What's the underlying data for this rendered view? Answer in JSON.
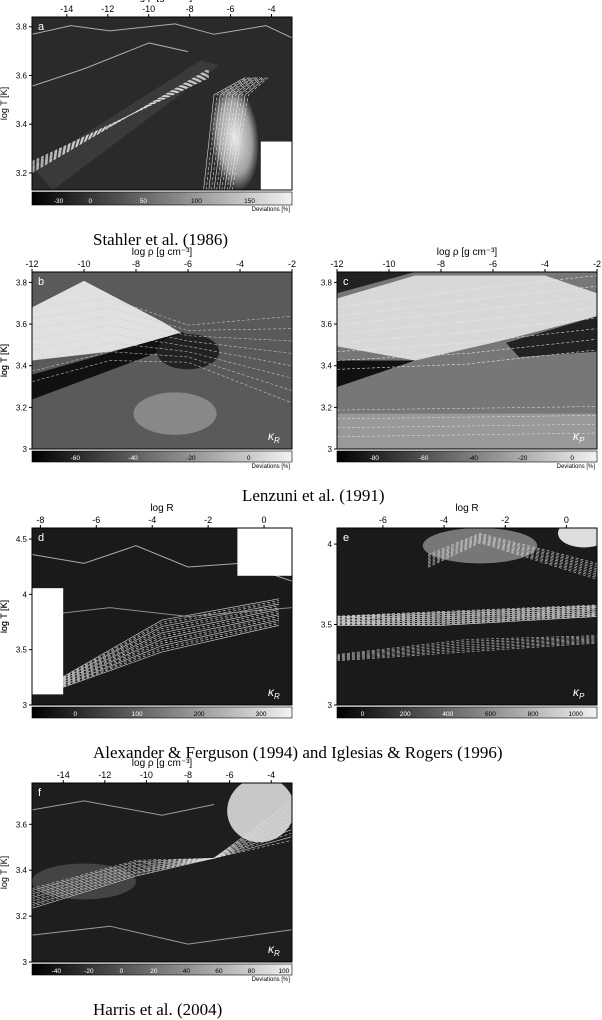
{
  "figure": {
    "captions": [
      "Stahler et al. (1986)",
      "Lenzuni et al. (1991)",
      "Alexander & Ferguson (1994) and Iglesias & Rogers (1996)",
      "Harris et al. (2004)"
    ]
  },
  "chart_data": [
    {
      "id": "a",
      "type": "heatmap",
      "panel_letter": "a",
      "kappa_label": "κ_R",
      "top_axis_label": "log ρ [g cm⁻³]",
      "left_axis_label": "log T [K]",
      "colorbar_label": "Deviations [%]",
      "x_ticks": [
        "-14",
        "-12",
        "-10",
        "-8",
        "-6",
        "-4"
      ],
      "y_ticks": [
        "3.8",
        "3.6",
        "3.4",
        "3.2"
      ],
      "colorbar_ticks": [
        "-30",
        "0",
        "50",
        "100",
        "150"
      ],
      "xlim": [
        -15.7,
        -3.0
      ],
      "ylim": [
        3.13,
        3.84
      ]
    },
    {
      "id": "b",
      "type": "heatmap",
      "panel_letter": "b",
      "kappa_label": "κ_R",
      "top_axis_label": "log ρ [g cm⁻³]",
      "left_axis_label": "log T [K]",
      "colorbar_label": "Deviations [%]",
      "x_ticks": [
        "-12",
        "-10",
        "-8",
        "-6",
        "-4",
        "-2"
      ],
      "y_ticks": [
        "3.8",
        "3.6",
        "3.4",
        "3.2",
        "3"
      ],
      "colorbar_ticks": [
        "-60",
        "-40",
        "-20",
        "0"
      ],
      "xlim": [
        -12,
        -2
      ],
      "ylim": [
        3.0,
        3.85
      ]
    },
    {
      "id": "c",
      "type": "heatmap",
      "panel_letter": "c",
      "kappa_label": "κ_P",
      "top_axis_label": "log ρ [g cm⁻³]",
      "left_axis_label": "log T [K]",
      "colorbar_label": "Deviations [%]",
      "x_ticks": [
        "-12",
        "-10",
        "-8",
        "-6",
        "-4",
        "-2"
      ],
      "y_ticks": [
        "3.8",
        "3.6",
        "3.4",
        "3.2",
        "3"
      ],
      "colorbar_ticks": [
        "-80",
        "-60",
        "-40",
        "-20",
        "0"
      ],
      "xlim": [
        -12,
        -2
      ],
      "ylim": [
        3.0,
        3.85
      ]
    },
    {
      "id": "d",
      "type": "heatmap",
      "panel_letter": "d",
      "kappa_label": "κ_R",
      "top_axis_label": "log R",
      "left_axis_label": "log T [K]",
      "colorbar_label": "",
      "x_ticks": [
        "-8",
        "-6",
        "-4",
        "-2",
        "0"
      ],
      "y_ticks": [
        "4.5",
        "4",
        "3.5",
        "3"
      ],
      "colorbar_ticks": [
        "0",
        "100",
        "200",
        "300"
      ],
      "xlim": [
        -8.3,
        1.0
      ],
      "ylim": [
        3.0,
        4.6
      ]
    },
    {
      "id": "e",
      "type": "heatmap",
      "panel_letter": "e",
      "kappa_label": "κ_P",
      "top_axis_label": "log R",
      "left_axis_label": "log T [K]",
      "colorbar_label": "",
      "x_ticks": [
        "-6",
        "-4",
        "-2",
        "0"
      ],
      "y_ticks": [
        "4",
        "3.5",
        "3"
      ],
      "colorbar_ticks": [
        "0",
        "200",
        "400",
        "600",
        "800",
        "1000"
      ],
      "xlim": [
        -7.5,
        1.0
      ],
      "ylim": [
        3.0,
        4.1
      ]
    },
    {
      "id": "f",
      "type": "heatmap",
      "panel_letter": "f",
      "kappa_label": "κ_R",
      "top_axis_label": "log ρ [g cm⁻³]",
      "left_axis_label": "log T [K]",
      "colorbar_label": "Deviations [%]",
      "x_ticks": [
        "-14",
        "-12",
        "-10",
        "-8",
        "-6",
        "-4"
      ],
      "y_ticks": [
        "3.6",
        "3.4",
        "3.2",
        "3"
      ],
      "colorbar_ticks": [
        "-40",
        "-20",
        "0",
        "20",
        "40",
        "60",
        "80",
        "100"
      ],
      "xlim": [
        -15.5,
        -3.0
      ],
      "ylim": [
        3.0,
        3.78
      ]
    }
  ]
}
